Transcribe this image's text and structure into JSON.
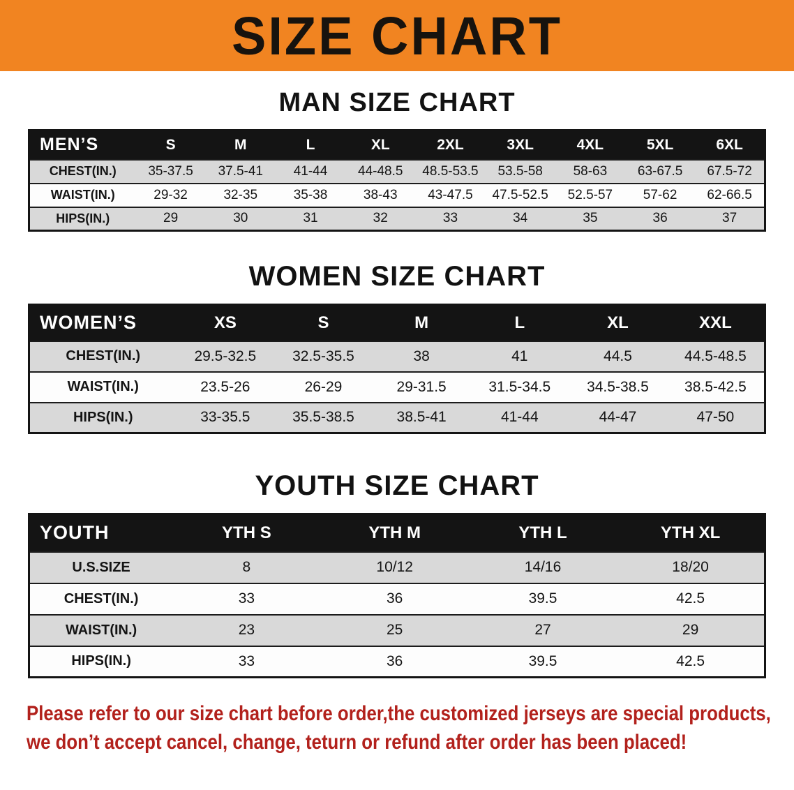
{
  "banner": {
    "title": "SIZE CHART",
    "bg_color": "#f18421",
    "text_color": "#17130e"
  },
  "colors": {
    "table_header_bg": "#141414",
    "table_header_text": "#ffffff",
    "row_stripe": "#d9d9d9",
    "notice_text": "#b2211c"
  },
  "chart_data": [
    {
      "type": "table",
      "title": "MAN SIZE CHART",
      "header": [
        "MEN’S",
        "S",
        "M",
        "L",
        "XL",
        "2XL",
        "3XL",
        "4XL",
        "5XL",
        "6XL"
      ],
      "rows": [
        [
          "CHEST(IN.)",
          "35-37.5",
          "37.5-41",
          "41-44",
          "44-48.5",
          "48.5-53.5",
          "53.5-58",
          "58-63",
          "63-67.5",
          "67.5-72"
        ],
        [
          "WAIST(IN.)",
          "29-32",
          "32-35",
          "35-38",
          "38-43",
          "43-47.5",
          "47.5-52.5",
          "52.5-57",
          "57-62",
          "62-66.5"
        ],
        [
          "HIPS(IN.)",
          "29",
          "30",
          "31",
          "32",
          "33",
          "34",
          "35",
          "36",
          "37"
        ]
      ]
    },
    {
      "type": "table",
      "title": "WOMEN SIZE CHART",
      "header": [
        "WOMEN’S",
        "XS",
        "S",
        "M",
        "L",
        "XL",
        "XXL"
      ],
      "rows": [
        [
          "CHEST(IN.)",
          "29.5-32.5",
          "32.5-35.5",
          "38",
          "41",
          "44.5",
          "44.5-48.5"
        ],
        [
          "WAIST(IN.)",
          "23.5-26",
          "26-29",
          "29-31.5",
          "31.5-34.5",
          "34.5-38.5",
          "38.5-42.5"
        ],
        [
          "HIPS(IN.)",
          "33-35.5",
          "35.5-38.5",
          "38.5-41",
          "41-44",
          "44-47",
          "47-50"
        ]
      ]
    },
    {
      "type": "table",
      "title": "YOUTH SIZE CHART",
      "header": [
        "YOUTH",
        "YTH S",
        "YTH M",
        "YTH L",
        "YTH XL"
      ],
      "rows": [
        [
          "U.S.SIZE",
          "8",
          "10/12",
          "14/16",
          "18/20"
        ],
        [
          "CHEST(IN.)",
          "33",
          "36",
          "39.5",
          "42.5"
        ],
        [
          "WAIST(IN.)",
          "23",
          "25",
          "27",
          "29"
        ],
        [
          "HIPS(IN.)",
          "33",
          "36",
          "39.5",
          "42.5"
        ]
      ]
    }
  ],
  "footer": {
    "line1": "Please refer to our size chart before order,the customized jerseys are special products,",
    "line2": "we don’t accept cancel, change, teturn or refund after order has been placed!",
    "color": "#b2211c"
  }
}
